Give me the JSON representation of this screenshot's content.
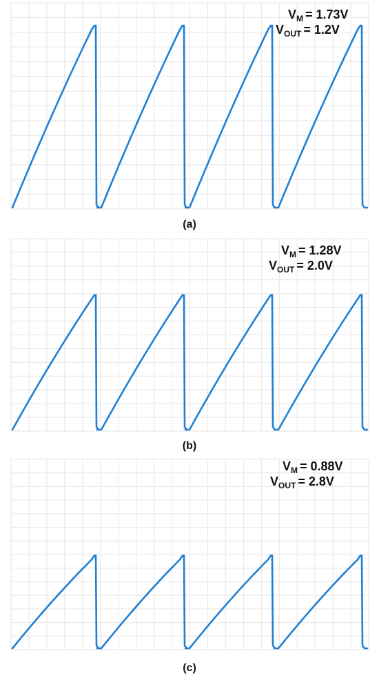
{
  "chart_data": [
    {
      "type": "line",
      "label": "(a)",
      "annotation": {
        "vm_symbol": "V",
        "vm_subscript": "M",
        "vm_value": "= 1.73V",
        "vout_symbol": "V",
        "vout_subscript": "OUT",
        "vout_value": "= 1.2V"
      },
      "grid": true,
      "cycles": 4,
      "ramp_peak": 1.0,
      "series": [
        {
          "values": [
            0,
            1.0,
            0,
            1.0,
            0,
            1.0,
            0,
            1.0,
            0
          ]
        }
      ]
    },
    {
      "type": "line",
      "label": "(b)",
      "annotation": {
        "vm_symbol": "V",
        "vm_subscript": "M",
        "vm_value": "= 1.28V",
        "vout_symbol": "V",
        "vout_subscript": "OUT",
        "vout_value": "= 2.0V"
      },
      "grid": true,
      "cycles": 4,
      "ramp_peak": 0.74,
      "series": [
        {
          "values": [
            0,
            0.74,
            0,
            0.74,
            0,
            0.74,
            0,
            0.74,
            0
          ]
        }
      ]
    },
    {
      "type": "line",
      "label": "(c)",
      "annotation": {
        "vm_symbol": "V",
        "vm_subscript": "M",
        "vm_value": "= 0.88V",
        "vout_symbol": "V",
        "vout_subscript": "OUT",
        "vout_value": "= 2.8V"
      },
      "grid": true,
      "cycles": 4,
      "ramp_peak": 0.51,
      "series": [
        {
          "values": [
            0,
            0.51,
            0,
            0.51,
            0,
            0.51,
            0,
            0.51,
            0
          ]
        }
      ]
    }
  ]
}
